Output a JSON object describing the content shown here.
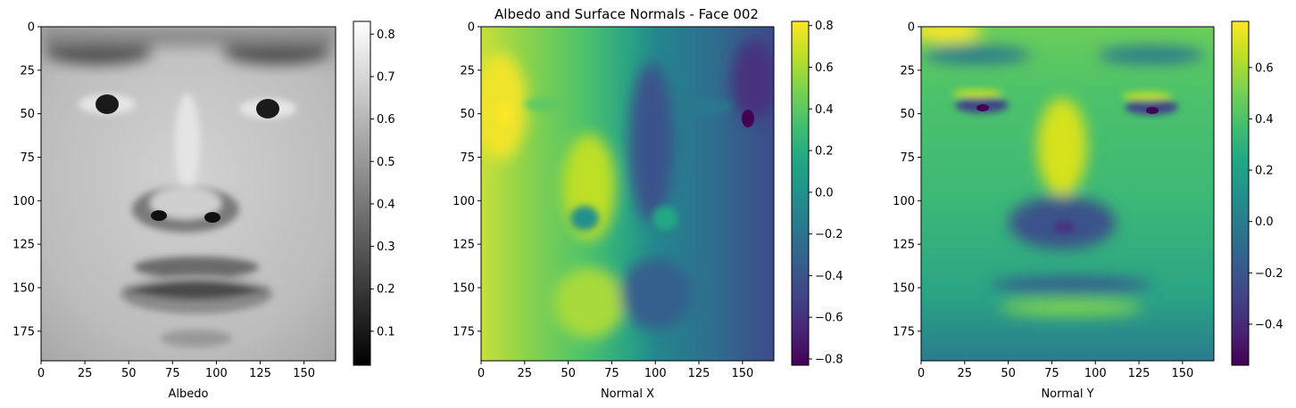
{
  "figure_title": "Albedo and Surface Normals - Face 002",
  "chart_data": [
    {
      "type": "heatmap",
      "id": "albedo",
      "title": "",
      "xlabel": "Albedo",
      "ylabel": "",
      "colormap": "gray",
      "image_shape": [
        192,
        168
      ],
      "xticks": [
        0,
        25,
        50,
        75,
        100,
        125,
        150
      ],
      "yticks": [
        0,
        25,
        50,
        75,
        100,
        125,
        150,
        175
      ],
      "colorbar": {
        "min": 0.02,
        "max": 0.83,
        "ticks": [
          0.1,
          0.2,
          0.3,
          0.4,
          0.5,
          0.6,
          0.7,
          0.8
        ]
      }
    },
    {
      "type": "heatmap",
      "id": "normal-x",
      "title": "Albedo and Surface Normals - Face 002",
      "xlabel": "Normal X",
      "ylabel": "",
      "colormap": "viridis",
      "image_shape": [
        192,
        168
      ],
      "xticks": [
        0,
        25,
        50,
        75,
        100,
        125,
        150
      ],
      "yticks": [
        0,
        25,
        50,
        75,
        100,
        125,
        150,
        175
      ],
      "colorbar": {
        "min": -0.83,
        "max": 0.82,
        "ticks": [
          -0.8,
          -0.6,
          -0.4,
          -0.2,
          0.0,
          0.2,
          0.4,
          0.6,
          0.8
        ]
      }
    },
    {
      "type": "heatmap",
      "id": "normal-y",
      "title": "",
      "xlabel": "Normal Y",
      "ylabel": "",
      "colormap": "viridis",
      "image_shape": [
        192,
        168
      ],
      "xticks": [
        0,
        25,
        50,
        75,
        100,
        125,
        150
      ],
      "yticks": [
        0,
        25,
        50,
        75,
        100,
        125,
        150,
        175
      ],
      "colorbar": {
        "min": -0.56,
        "max": 0.78,
        "ticks": [
          -0.4,
          -0.2,
          0.0,
          0.2,
          0.4,
          0.6
        ]
      }
    }
  ],
  "colors": {
    "viridis_dark": "#440154",
    "viridis_mid": "#21918c",
    "viridis_bright": "#fde725"
  }
}
